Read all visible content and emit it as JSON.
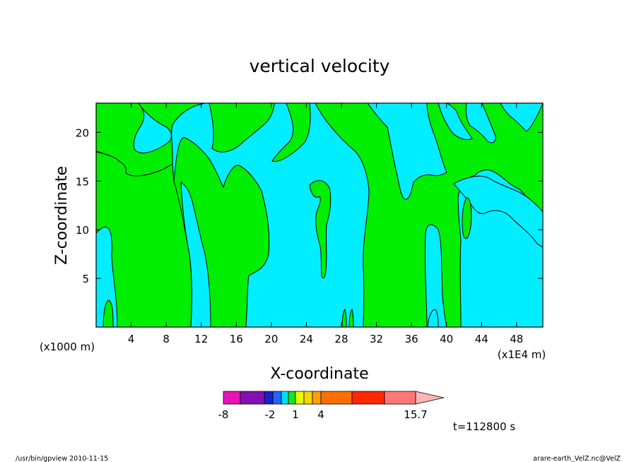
{
  "chart_data": {
    "type": "heatmap",
    "title": "vertical velocity",
    "xlabel": "X-coordinate",
    "ylabel": "Z-coordinate",
    "x_unit_left": "(x1000 m)",
    "x_unit_right": "(x1E4 m)",
    "xlim": [
      0,
      51
    ],
    "ylim": [
      0,
      23
    ],
    "x_ticks": [
      4,
      8,
      12,
      16,
      20,
      24,
      28,
      32,
      36,
      40,
      44,
      48
    ],
    "y_ticks": [
      5,
      10,
      15,
      20
    ],
    "x_tick_labels": [
      "4",
      "8",
      "12",
      "16",
      "20",
      "24",
      "28",
      "32",
      "36",
      "40",
      "44",
      "48"
    ],
    "y_tick_labels": [
      "5",
      "10",
      "15",
      "20"
    ],
    "colors": {
      "positive_region": "#00ee00",
      "negative_region": "#00eeff",
      "contour_line": "#000000"
    },
    "colorbar": {
      "colors": [
        "#e614b4",
        "#8210b4",
        "#1e1ec8",
        "#1e64ff",
        "#00dcff",
        "#14e614",
        "#e6ff00",
        "#ffd200",
        "#ffa000",
        "#ff6e00",
        "#ff2800",
        "#ff7878",
        "#ffb4b4"
      ],
      "tick_labels": [
        "-8",
        "-2",
        "1",
        "4",
        "15.7"
      ]
    },
    "time_label": "t=112800 s"
  },
  "footer": {
    "left": "/usr/bin/gpview   2010-11-15",
    "right": "arare-earth_VelZ.nc@VelZ"
  }
}
